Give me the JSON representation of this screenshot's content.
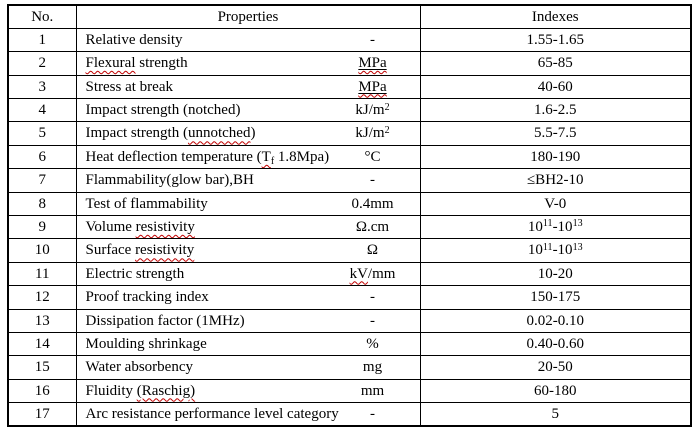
{
  "table": {
    "colors": {
      "border": "#000000",
      "text": "#000000",
      "background": "#ffffff",
      "spellcheck_squiggle": "#c00000"
    },
    "headers": {
      "no": "No.",
      "properties": "Properties",
      "indexes": "Indexes"
    },
    "rows": [
      {
        "no": "1",
        "name": [
          {
            "t": "Relative density"
          }
        ],
        "unit": [
          {
            "t": "-"
          }
        ],
        "index": [
          {
            "t": "1.55-1.65"
          }
        ]
      },
      {
        "no": "2",
        "name": [
          {
            "t": "Flexural",
            "w": true
          },
          {
            "t": " strength"
          }
        ],
        "unit": [
          {
            "t": "MPa",
            "u": true,
            "w": true
          }
        ],
        "index": [
          {
            "t": "65-85"
          }
        ]
      },
      {
        "no": "3",
        "name": [
          {
            "t": "Stress at break"
          }
        ],
        "unit": [
          {
            "t": "MPa",
            "u": true,
            "w": true
          }
        ],
        "index": [
          {
            "t": "40-60"
          }
        ]
      },
      {
        "no": "4",
        "name": [
          {
            "t": "Impact strength (notched)"
          }
        ],
        "unit": [
          {
            "t": "kJ/m"
          },
          {
            "t": "2",
            "s": "sup"
          }
        ],
        "index": [
          {
            "t": "1.6-2.5"
          }
        ]
      },
      {
        "no": "5",
        "name": [
          {
            "t": "Impact strength ("
          },
          {
            "t": "unnotched",
            "w": true
          },
          {
            "t": ")"
          }
        ],
        "unit": [
          {
            "t": "kJ/m"
          },
          {
            "t": "2",
            "s": "sup"
          }
        ],
        "index": [
          {
            "t": "5.5-7.5"
          }
        ]
      },
      {
        "no": "6",
        "name": [
          {
            "t": "Heat deflection temperature ("
          },
          {
            "t": "T",
            "w": true
          },
          {
            "t": "f",
            "s": "sub",
            "w": true
          },
          {
            "t": " 1.8Mpa)"
          }
        ],
        "unit": [
          {
            "t": "°C"
          }
        ],
        "index": [
          {
            "t": "180-190"
          }
        ]
      },
      {
        "no": "7",
        "name": [
          {
            "t": "Flammability(glow bar),BH"
          }
        ],
        "unit": [
          {
            "t": "-"
          }
        ],
        "index": [
          {
            "t": "≤BH2-10"
          }
        ]
      },
      {
        "no": "8",
        "name": [
          {
            "t": "Test of flammability"
          }
        ],
        "unit": [
          {
            "t": "0.4mm"
          }
        ],
        "index": [
          {
            "t": "V-0"
          }
        ]
      },
      {
        "no": "9",
        "name": [
          {
            "t": "Volume "
          },
          {
            "t": "resistivity",
            "w": true
          }
        ],
        "unit": [
          {
            "t": "Ω.cm"
          }
        ],
        "index": [
          {
            "t": "10"
          },
          {
            "t": "11",
            "s": "sup"
          },
          {
            "t": "-10"
          },
          {
            "t": "13",
            "s": "sup"
          }
        ]
      },
      {
        "no": "10",
        "name": [
          {
            "t": "Surface "
          },
          {
            "t": "resistivity",
            "w": true
          }
        ],
        "unit": [
          {
            "t": "Ω"
          }
        ],
        "index": [
          {
            "t": "10"
          },
          {
            "t": "11",
            "s": "sup"
          },
          {
            "t": "-10"
          },
          {
            "t": "13",
            "s": "sup"
          }
        ]
      },
      {
        "no": "11",
        "name": [
          {
            "t": "Electric strength"
          }
        ],
        "unit": [
          {
            "t": "kV",
            "w": true
          },
          {
            "t": "/mm"
          }
        ],
        "index": [
          {
            "t": "10-20"
          }
        ]
      },
      {
        "no": "12",
        "name": [
          {
            "t": "Proof tracking index"
          }
        ],
        "unit": [
          {
            "t": "-"
          }
        ],
        "index": [
          {
            "t": "150-175"
          }
        ]
      },
      {
        "no": "13",
        "name": [
          {
            "t": "Dissipation factor (1MHz)"
          }
        ],
        "unit": [
          {
            "t": "-"
          }
        ],
        "index": [
          {
            "t": "0.02-0.10"
          }
        ]
      },
      {
        "no": "14",
        "name": [
          {
            "t": "Moulding shrinkage"
          }
        ],
        "unit": [
          {
            "t": "%"
          }
        ],
        "index": [
          {
            "t": "0.40-0.60"
          }
        ]
      },
      {
        "no": "15",
        "name": [
          {
            "t": "Water absorbency"
          }
        ],
        "unit": [
          {
            "t": "mg"
          }
        ],
        "index": [
          {
            "t": "20-50"
          }
        ]
      },
      {
        "no": "16",
        "name": [
          {
            "t": "Fluidity "
          },
          {
            "t": "(Raschig)",
            "w": true
          }
        ],
        "unit": [
          {
            "t": "mm"
          }
        ],
        "index": [
          {
            "t": "60-180"
          }
        ]
      },
      {
        "no": "17",
        "name": [
          {
            "t": "Arc resistance performance level category"
          }
        ],
        "unit": [
          {
            "t": "-"
          }
        ],
        "index": [
          {
            "t": "5"
          }
        ]
      }
    ]
  }
}
